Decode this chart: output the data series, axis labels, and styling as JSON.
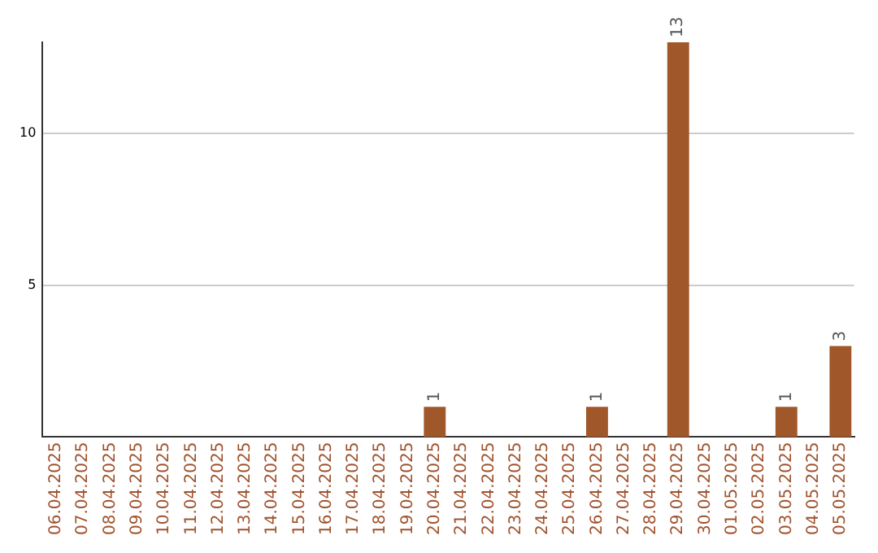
{
  "chart_data": {
    "type": "bar",
    "categories": [
      "06.04.2025",
      "07.04.2025",
      "08.04.2025",
      "09.04.2025",
      "10.04.2025",
      "11.04.2025",
      "12.04.2025",
      "13.04.2025",
      "14.04.2025",
      "15.04.2025",
      "16.04.2025",
      "17.04.2025",
      "18.04.2025",
      "19.04.2025",
      "20.04.2025",
      "21.04.2025",
      "22.04.2025",
      "23.04.2025",
      "24.04.2025",
      "25.04.2025",
      "26.04.2025",
      "27.04.2025",
      "28.04.2025",
      "29.04.2025",
      "30.04.2025",
      "01.05.2025",
      "02.05.2025",
      "03.05.2025",
      "04.05.2025",
      "05.05.2025"
    ],
    "values": [
      0,
      0,
      0,
      0,
      0,
      0,
      0,
      0,
      0,
      0,
      0,
      0,
      0,
      0,
      1,
      0,
      0,
      0,
      0,
      0,
      1,
      0,
      0,
      13,
      0,
      0,
      0,
      1,
      0,
      3
    ],
    "value_labels": [
      null,
      null,
      null,
      null,
      null,
      null,
      null,
      null,
      null,
      null,
      null,
      null,
      null,
      null,
      "1",
      null,
      null,
      null,
      null,
      null,
      "1",
      null,
      null,
      "13",
      null,
      null,
      null,
      "1",
      null,
      "3"
    ],
    "color": "#a0572a",
    "ylim": [
      0,
      13
    ],
    "yticks": [
      5,
      10
    ],
    "grid": "y",
    "legend": false
  }
}
